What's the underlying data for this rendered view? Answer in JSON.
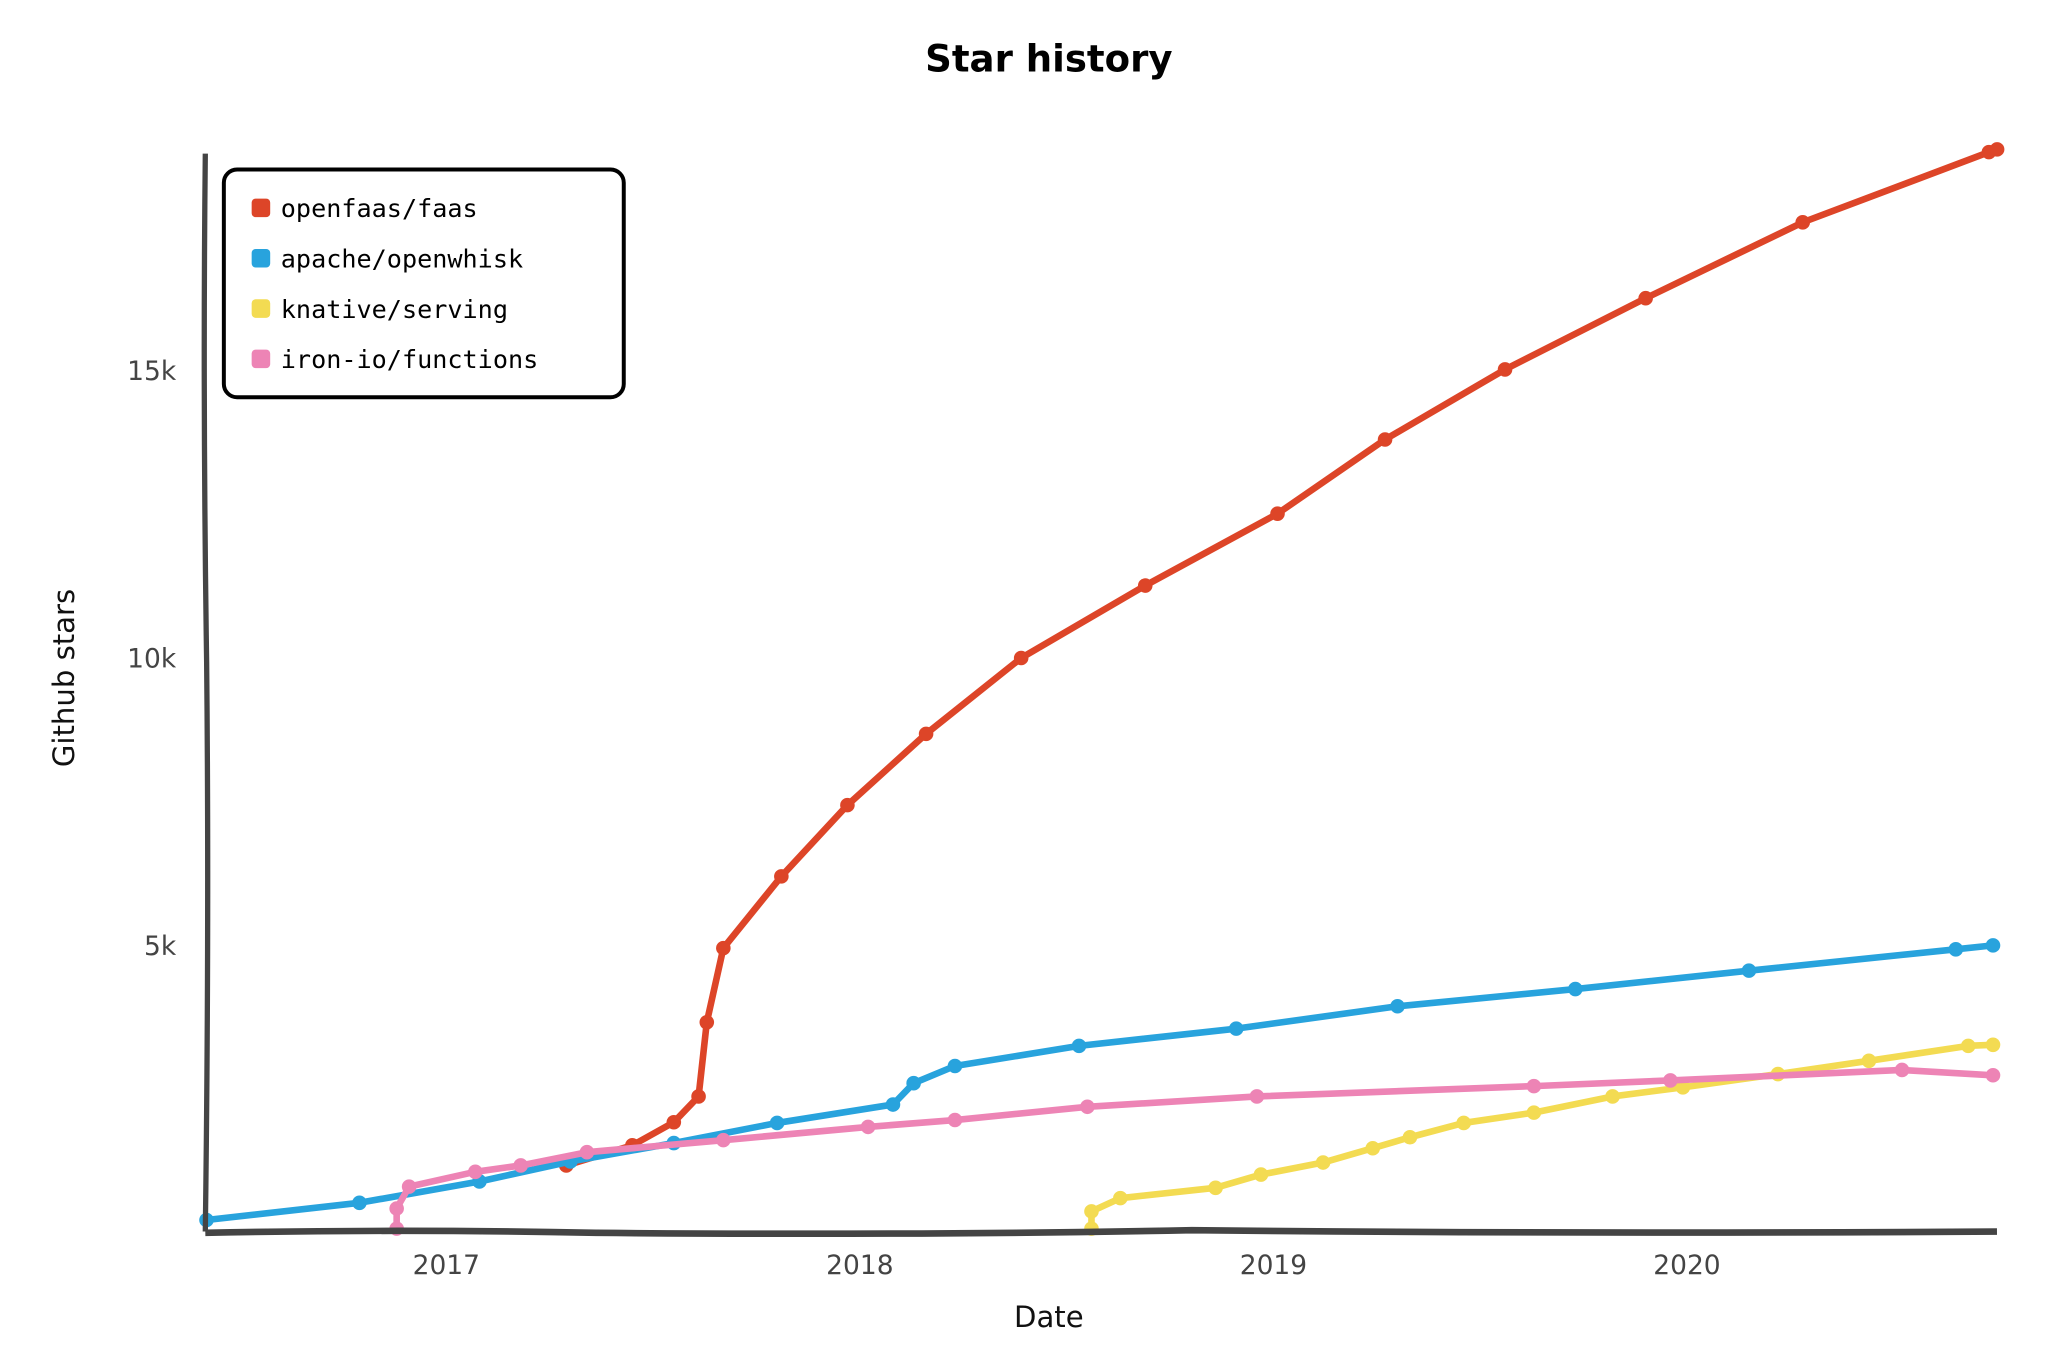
{
  "chart_data": {
    "type": "line",
    "title": "Star history",
    "xlabel": "Date",
    "ylabel": "Github stars",
    "x_ticks": [
      {
        "label": "2017",
        "value": 2017
      },
      {
        "label": "2018",
        "value": 2018
      },
      {
        "label": "2019",
        "value": 2019
      },
      {
        "label": "2020",
        "value": 2020
      }
    ],
    "y_ticks": [
      {
        "label": "5k",
        "value": 5000
      },
      {
        "label": "10k",
        "value": 10000
      },
      {
        "label": "15k",
        "value": 15000
      }
    ],
    "xlim": [
      2016.42,
      2020.76
    ],
    "ylim": [
      0,
      19000
    ],
    "grid": false,
    "legend_position": "top-left",
    "x_unit": "decimal year",
    "series": [
      {
        "name": "openfaas/faas",
        "color": "#dd4528",
        "points": [
          [
            2017.29,
            1150
          ],
          [
            2017.45,
            1500
          ],
          [
            2017.55,
            1900
          ],
          [
            2017.61,
            2350
          ],
          [
            2017.63,
            3640
          ],
          [
            2017.67,
            4930
          ],
          [
            2017.81,
            6180
          ],
          [
            2017.97,
            7420
          ],
          [
            2018.16,
            8660
          ],
          [
            2018.39,
            9980
          ],
          [
            2018.69,
            11240
          ],
          [
            2019.01,
            12490
          ],
          [
            2019.27,
            13780
          ],
          [
            2019.56,
            15000
          ],
          [
            2019.9,
            16240
          ],
          [
            2020.28,
            17560
          ],
          [
            2020.73,
            18780
          ],
          [
            2020.75,
            18830
          ]
        ]
      },
      {
        "name": "apache/openwhisk",
        "color": "#28a3dd",
        "points": [
          [
            2016.42,
            200
          ],
          [
            2016.79,
            500
          ],
          [
            2017.08,
            870
          ],
          [
            2017.3,
            1220
          ],
          [
            2017.55,
            1540
          ],
          [
            2017.8,
            1890
          ],
          [
            2018.08,
            2210
          ],
          [
            2018.13,
            2580
          ],
          [
            2018.23,
            2880
          ],
          [
            2018.53,
            3230
          ],
          [
            2018.91,
            3530
          ],
          [
            2019.3,
            3920
          ],
          [
            2019.73,
            4220
          ],
          [
            2020.15,
            4540
          ],
          [
            2020.65,
            4910
          ],
          [
            2020.74,
            4980
          ]
        ]
      },
      {
        "name": "knative/serving",
        "color": "#f3db52",
        "points": [
          [
            2018.56,
            50
          ],
          [
            2018.56,
            350
          ],
          [
            2018.63,
            580
          ],
          [
            2018.86,
            760
          ],
          [
            2018.97,
            990
          ],
          [
            2019.12,
            1200
          ],
          [
            2019.24,
            1450
          ],
          [
            2019.33,
            1640
          ],
          [
            2019.46,
            1890
          ],
          [
            2019.63,
            2070
          ],
          [
            2019.82,
            2350
          ],
          [
            2019.99,
            2510
          ],
          [
            2020.22,
            2740
          ],
          [
            2020.44,
            2970
          ],
          [
            2020.68,
            3230
          ],
          [
            2020.74,
            3250
          ]
        ]
      },
      {
        "name": "iron-io/functions",
        "color": "#ed84b5",
        "points": [
          [
            2016.88,
            50
          ],
          [
            2016.88,
            400
          ],
          [
            2016.91,
            780
          ],
          [
            2017.07,
            1040
          ],
          [
            2017.18,
            1150
          ],
          [
            2017.34,
            1380
          ],
          [
            2017.67,
            1590
          ],
          [
            2018.02,
            1820
          ],
          [
            2018.23,
            1940
          ],
          [
            2018.55,
            2170
          ],
          [
            2018.96,
            2350
          ],
          [
            2019.63,
            2530
          ],
          [
            2019.96,
            2630
          ],
          [
            2020.52,
            2810
          ],
          [
            2020.74,
            2720
          ]
        ]
      }
    ]
  }
}
